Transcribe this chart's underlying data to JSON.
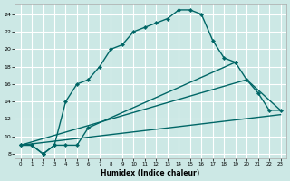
{
  "xlabel": "Humidex (Indice chaleur)",
  "background_color": "#cce8e5",
  "grid_color": "#b8d8d4",
  "line_color": "#006666",
  "xlim_min": -0.5,
  "xlim_max": 23.5,
  "ylim_min": 7.5,
  "ylim_max": 25.2,
  "xtick_vals": [
    0,
    1,
    2,
    3,
    4,
    5,
    6,
    7,
    8,
    9,
    10,
    11,
    12,
    13,
    14,
    15,
    16,
    17,
    18,
    19,
    20,
    21,
    22,
    23
  ],
  "ytick_vals": [
    8,
    10,
    12,
    14,
    16,
    18,
    20,
    22,
    24
  ],
  "series": [
    {
      "x": [
        0,
        1,
        2,
        3,
        4,
        5,
        6,
        7,
        8,
        9,
        10,
        11,
        12,
        13,
        14,
        15,
        16,
        17,
        18,
        19
      ],
      "y": [
        9,
        9,
        8,
        9,
        14,
        16,
        16.5,
        18,
        20,
        20.5,
        22,
        22.5,
        23,
        23.5,
        24.5,
        24.5,
        24,
        21,
        19,
        18.5
      ],
      "has_marker": true
    },
    {
      "x": [
        0,
        1,
        2,
        3,
        4,
        5,
        6,
        19,
        20,
        21,
        22,
        23
      ],
      "y": [
        9,
        9,
        8,
        9,
        9,
        9,
        11,
        18.5,
        16.5,
        15,
        13,
        13
      ],
      "has_marker": true
    },
    {
      "x": [
        0,
        20,
        23
      ],
      "y": [
        9,
        16.5,
        13
      ],
      "has_marker": false
    },
    {
      "x": [
        0,
        23
      ],
      "y": [
        9,
        12.5
      ],
      "has_marker": false
    }
  ]
}
